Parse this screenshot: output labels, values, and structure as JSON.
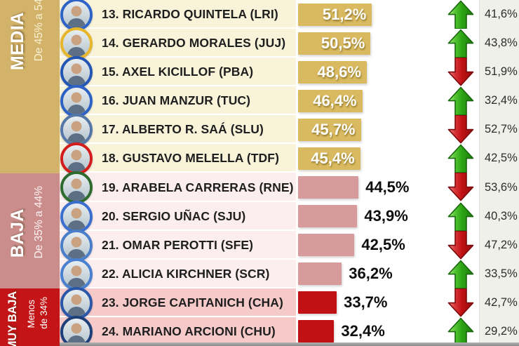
{
  "chart_data": {
    "type": "bar",
    "orientation": "horizontal",
    "unit": "%",
    "legend_hint": "bar label = current approval; right column = previous value; arrow = trend",
    "groups": [
      {
        "label": "MEDIA",
        "range_label": "De 45% a 54%",
        "range_lines": [
          "De 45% a 54%"
        ],
        "band_color": "#d3b26a",
        "row_color": "#f9f3da",
        "bar_color": "#d9ba60",
        "value_style": "inside"
      },
      {
        "label": "BAJA",
        "range_label": "De 35% a 44%",
        "range_lines": [
          "De 35% a 44%"
        ],
        "band_color": "#ca8d8b",
        "row_color": "#fcedee",
        "bar_color": "#d79b9c",
        "value_style": "outside"
      },
      {
        "label": "MUY BAJA",
        "range_label": "Menos de 34%",
        "range_lines": [
          "Menos",
          "de 34%"
        ],
        "band_color": "#c31517",
        "row_color": "#f7caca",
        "bar_color": "#c01214",
        "value_style": "outside"
      }
    ],
    "rows": [
      {
        "rank": 13,
        "label": "13. RICARDO QUINTELA (LRI)",
        "value": 51.2,
        "value_label": "51,2%",
        "prev": 41.6,
        "prev_label": "41,6%",
        "trend": "up",
        "group": 0,
        "ring": "#2e64c8"
      },
      {
        "rank": 14,
        "label": "14. GERARDO MORALES (JUJ)",
        "value": 50.5,
        "value_label": "50,5%",
        "prev": 43.8,
        "prev_label": "43,8%",
        "trend": "up",
        "group": 0,
        "ring": "#e8b62a"
      },
      {
        "rank": 15,
        "label": "15. AXEL KICILLOF (PBA)",
        "value": 48.6,
        "value_label": "48,6%",
        "prev": 51.9,
        "prev_label": "51,9%",
        "trend": "down",
        "group": 0,
        "ring": "#2356b5"
      },
      {
        "rank": 16,
        "label": "16. JUAN MANZUR (TUC)",
        "value": 46.4,
        "value_label": "46,4%",
        "prev": 32.4,
        "prev_label": "32,4%",
        "trend": "up",
        "group": 0,
        "ring": "#2d62c5"
      },
      {
        "rank": 17,
        "label": "17. ALBERTO R. SAÁ (SLU)",
        "value": 45.7,
        "value_label": "45,7%",
        "prev": 52.7,
        "prev_label": "52,7%",
        "trend": "down",
        "group": 0,
        "ring": "#5577a8"
      },
      {
        "rank": 18,
        "label": "18. GUSTAVO MELELLA (TDF)",
        "value": 45.4,
        "value_label": "45,4%",
        "prev": 42.5,
        "prev_label": "42,5%",
        "trend": "up",
        "group": 0,
        "ring": "#d31d1d"
      },
      {
        "rank": 19,
        "label": "19. ARABELA CARRERAS (RNE)",
        "value": 44.5,
        "value_label": "44,5%",
        "prev": 53.6,
        "prev_label": "53,6%",
        "trend": "down",
        "group": 1,
        "ring": "#2e6b2e"
      },
      {
        "rank": 20,
        "label": "20. SERGIO UÑAC (SJU)",
        "value": 43.9,
        "value_label": "43,9%",
        "prev": 40.3,
        "prev_label": "40,3%",
        "trend": "up",
        "group": 1,
        "ring": "#3a6fd0"
      },
      {
        "rank": 21,
        "label": "21. OMAR PEROTTI (SFE)",
        "value": 42.5,
        "value_label": "42,5%",
        "prev": 47.2,
        "prev_label": "47,2%",
        "trend": "down",
        "group": 1,
        "ring": "#4a7ec9"
      },
      {
        "rank": 22,
        "label": "22. ALICIA KIRCHNER (SCR)",
        "value": 36.2,
        "value_label": "36,2%",
        "prev": 33.5,
        "prev_label": "33,5%",
        "trend": "up",
        "group": 1,
        "ring": "#4a80d0"
      },
      {
        "rank": 23,
        "label": "23. JORGE CAPITANICH (CHA)",
        "value": 33.7,
        "value_label": "33,7%",
        "prev": 42.7,
        "prev_label": "42,7%",
        "trend": "down",
        "group": 2,
        "ring": "#2a57a8"
      },
      {
        "rank": 24,
        "label": "24. MARIANO ARCIONI (CHU)",
        "value": 32.4,
        "value_label": "32,4%",
        "prev": 29.2,
        "prev_label": "29,2%",
        "trend": "up",
        "group": 2,
        "ring": "#1d3f7a"
      }
    ]
  },
  "colors": {
    "trend_up": "#2ba313",
    "trend_down": "#c01014",
    "right_strip": "#eff0ea",
    "name_text": "#1e1e1e",
    "prev_text": "#2c2c2c"
  }
}
